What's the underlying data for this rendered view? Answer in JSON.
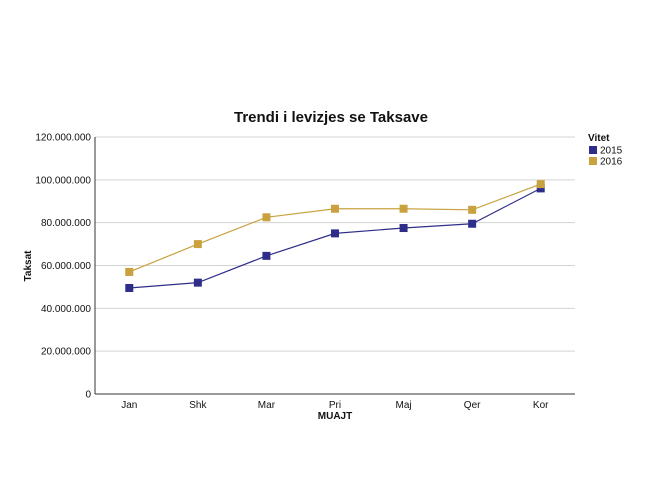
{
  "chart_data": {
    "type": "line",
    "title": "Trendi i levizjes se Taksave",
    "xlabel": "MUAJT",
    "ylabel": "Taksat",
    "categories": [
      "Jan",
      "Shk",
      "Mar",
      "Pri",
      "Maj",
      "Qer",
      "Kor"
    ],
    "ylim": [
      0,
      120000000
    ],
    "yticks": [
      0,
      20000000,
      40000000,
      60000000,
      80000000,
      100000000,
      120000000
    ],
    "ytick_labels": [
      "0",
      "20.000.000",
      "40.000.000",
      "60.000.000",
      "80.000.000",
      "100.000.000",
      "120.000.000"
    ],
    "grid": true,
    "legend": {
      "title": "Vitet",
      "placement": "right"
    },
    "series": [
      {
        "name": "2015",
        "color": "#2e2e8a",
        "values": [
          49500000,
          52000000,
          64500000,
          75000000,
          77500000,
          79500000,
          96000000
        ]
      },
      {
        "name": "2016",
        "color": "#c9a23f",
        "values": [
          57000000,
          70000000,
          82500000,
          86500000,
          86500000,
          86000000,
          98000000
        ]
      }
    ]
  }
}
